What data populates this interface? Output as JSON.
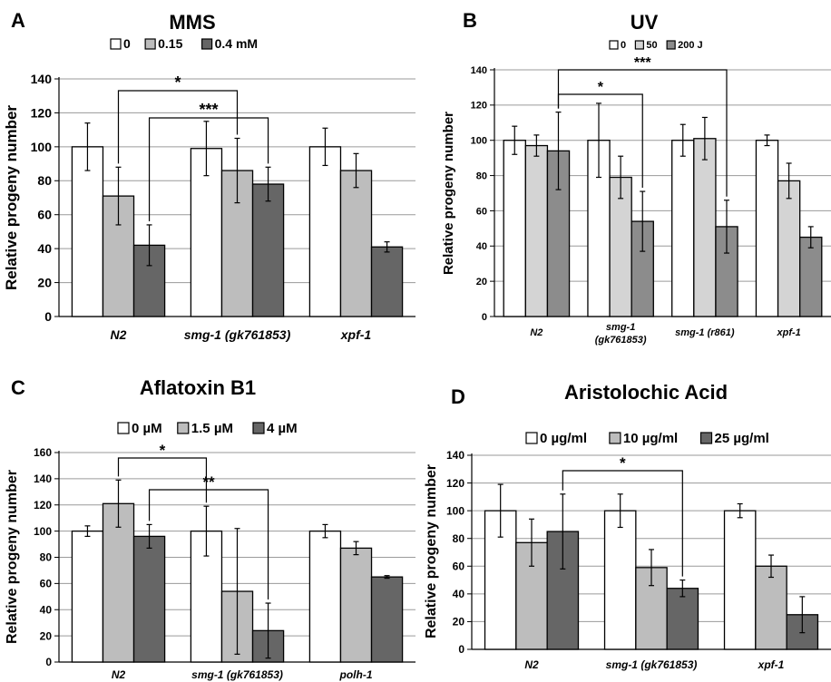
{
  "chart_data": [
    {
      "type": "bar",
      "panel": "A",
      "title": "MMS",
      "ylabel": "Relative progeny number",
      "ylim": [
        0,
        140
      ],
      "yticks": [
        0,
        20,
        40,
        60,
        80,
        100,
        120,
        140
      ],
      "categories": [
        "N2",
        "smg-1 (gk761853)",
        "xpf-1"
      ],
      "series": [
        {
          "name": "0",
          "color": "#ffffff",
          "values": [
            100,
            99,
            100
          ],
          "errors": [
            14,
            16,
            11
          ]
        },
        {
          "name": "0.15",
          "color": "#bdbdbd",
          "values": [
            71,
            86,
            86
          ],
          "errors": [
            17,
            19,
            10
          ]
        },
        {
          "name": "0.4 mM",
          "color": "#666666",
          "values": [
            42,
            78,
            41
          ],
          "errors": [
            12,
            10,
            3
          ]
        }
      ],
      "significance": [
        {
          "label": "*",
          "from": [
            0,
            1
          ],
          "to": [
            1,
            1
          ]
        },
        {
          "label": "***",
          "from": [
            0,
            2
          ],
          "to": [
            1,
            2
          ]
        }
      ]
    },
    {
      "type": "bar",
      "panel": "B",
      "title": "UV",
      "ylabel": "Relative progeny number",
      "ylim": [
        0,
        140
      ],
      "yticks": [
        0,
        20,
        40,
        60,
        80,
        100,
        120,
        140
      ],
      "categories": [
        "N2",
        "smg-1 (gk761853)",
        "smg-1 (r861)",
        "xpf-1"
      ],
      "series": [
        {
          "name": "0",
          "color": "#ffffff",
          "values": [
            100,
            100,
            100,
            100
          ],
          "errors": [
            8,
            21,
            9,
            3
          ]
        },
        {
          "name": "50",
          "color": "#d4d4d4",
          "values": [
            97,
            79,
            101,
            77
          ],
          "errors": [
            6,
            12,
            12,
            10
          ]
        },
        {
          "name": "200 J",
          "color": "#8c8c8c",
          "values": [
            94,
            54,
            51,
            45
          ],
          "errors": [
            22,
            17,
            15,
            6
          ]
        }
      ],
      "significance": [
        {
          "label": "*",
          "from": [
            0,
            2
          ],
          "to": [
            1,
            2
          ]
        },
        {
          "label": "***",
          "from": [
            0,
            2
          ],
          "to": [
            2,
            2
          ]
        }
      ]
    },
    {
      "type": "bar",
      "panel": "C",
      "title": "Aflatoxin B1",
      "ylabel": "Relative progeny number",
      "ylim": [
        0,
        160
      ],
      "yticks": [
        0,
        20,
        40,
        60,
        80,
        100,
        120,
        140,
        160
      ],
      "categories": [
        "N2",
        "smg-1 (gk761853)",
        "polh-1"
      ],
      "series": [
        {
          "name": "0 µM",
          "color": "#ffffff",
          "values": [
            100,
            100,
            100
          ],
          "errors": [
            4,
            19,
            5
          ]
        },
        {
          "name": "1.5 µM",
          "color": "#bdbdbd",
          "values": [
            121,
            54,
            87
          ],
          "errors": [
            18,
            48,
            5
          ]
        },
        {
          "name": "4 µM",
          "color": "#666666",
          "values": [
            96,
            24,
            65
          ],
          "errors": [
            9,
            21,
            1
          ]
        }
      ],
      "significance": [
        {
          "label": "*",
          "from": [
            0,
            1
          ],
          "to": [
            1,
            0
          ]
        },
        {
          "label": "**",
          "from": [
            0,
            2
          ],
          "to": [
            1,
            2
          ]
        }
      ]
    },
    {
      "type": "bar",
      "panel": "D",
      "title": "Aristolochic Acid",
      "ylabel": "Relative progeny number",
      "ylim": [
        0,
        140
      ],
      "yticks": [
        0,
        20,
        40,
        60,
        80,
        100,
        120,
        140
      ],
      "categories": [
        "N2",
        "smg-1 (gk761853)",
        "xpf-1"
      ],
      "series": [
        {
          "name": "0 µg/ml",
          "color": "#ffffff",
          "values": [
            100,
            100,
            100
          ],
          "errors": [
            19,
            12,
            5
          ]
        },
        {
          "name": "10 µg/ml",
          "color": "#bdbdbd",
          "values": [
            77,
            59,
            60
          ],
          "errors": [
            17,
            13,
            8
          ]
        },
        {
          "name": "25 µg/ml",
          "color": "#666666",
          "values": [
            85,
            44,
            25
          ],
          "errors": [
            27,
            6,
            13
          ]
        }
      ],
      "significance": [
        {
          "label": "*",
          "from": [
            0,
            2
          ],
          "to": [
            1,
            2
          ]
        }
      ]
    }
  ]
}
